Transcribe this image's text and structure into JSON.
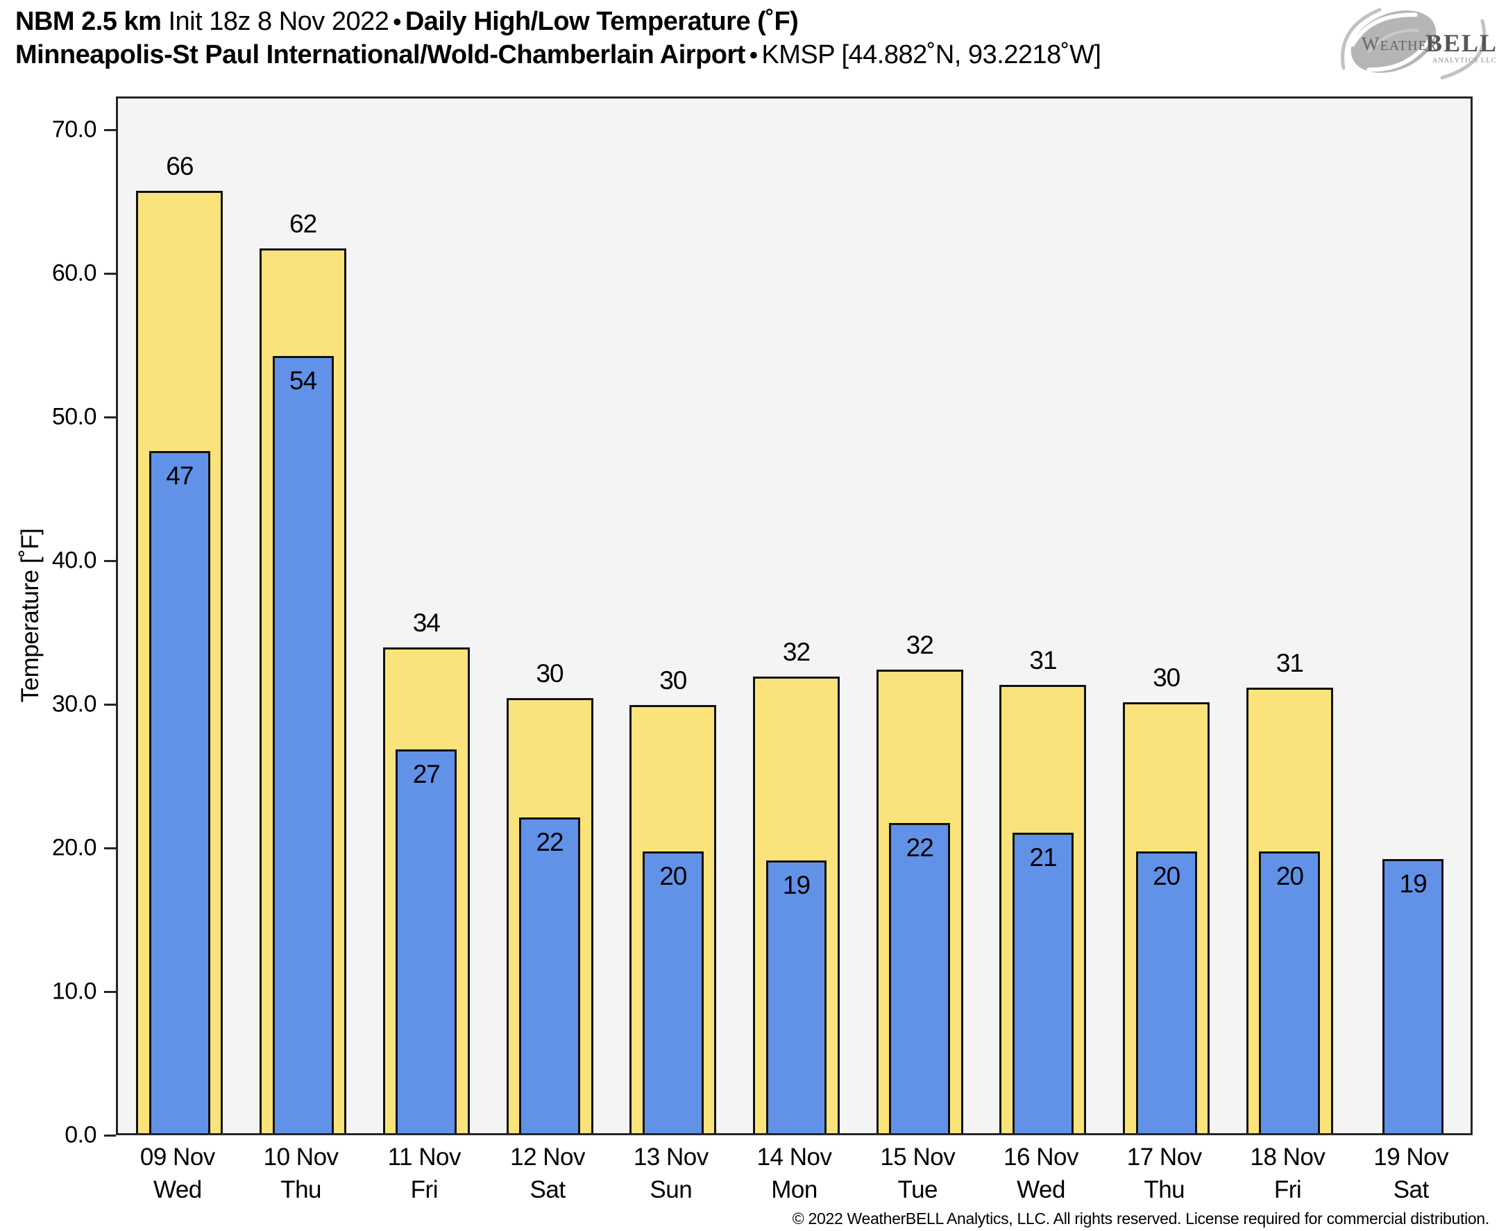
{
  "header": {
    "model": "NBM 2.5 km",
    "init": "Init 18z 8 Nov 2022",
    "separator": "•",
    "product": "Daily High/Low Temperature (˚F)",
    "station": "Minneapolis-St Paul International/Wold-Chamberlain Airport",
    "station_id": "KMSP [44.882˚N, 93.2218˚W]"
  },
  "logo": {
    "icon": "weatherbell-swirl-icon",
    "text_weather": "Weather",
    "text_bell": "BELL",
    "text_sub": "Analytics LLC"
  },
  "footer": {
    "copyright": "© 2022 WeatherBELL Analytics, LLC. All rights reserved. License required for commercial distribution."
  },
  "chart_data": {
    "type": "bar",
    "title": "Daily High/Low Temperature (˚F)",
    "station": "KMSP Minneapolis-St Paul International/Wold-Chamberlain Airport",
    "ylabel": "Temperature [˚F]",
    "ylim": [
      0,
      72.33
    ],
    "yticks": [
      0,
      10,
      20,
      30,
      40,
      50,
      60,
      70
    ],
    "ytick_labels": [
      "0.0",
      "10.0",
      "20.0",
      "30.0",
      "40.0",
      "50.0",
      "60.0",
      "70.0"
    ],
    "grid": false,
    "legend_position": "none",
    "plot_background": "#f4f4f4",
    "bar_edge_color": "#111111",
    "categories": [
      {
        "date": "09 Nov",
        "day": "Wed"
      },
      {
        "date": "10 Nov",
        "day": "Thu"
      },
      {
        "date": "11 Nov",
        "day": "Fri"
      },
      {
        "date": "12 Nov",
        "day": "Sat"
      },
      {
        "date": "13 Nov",
        "day": "Sun"
      },
      {
        "date": "14 Nov",
        "day": "Mon"
      },
      {
        "date": "15 Nov",
        "day": "Tue"
      },
      {
        "date": "16 Nov",
        "day": "Wed"
      },
      {
        "date": "17 Nov",
        "day": "Thu"
      },
      {
        "date": "18 Nov",
        "day": "Fri"
      },
      {
        "date": "19 Nov",
        "day": "Sat"
      }
    ],
    "series": [
      {
        "name": "Daily High",
        "color": "#FBE37B",
        "labels": [
          66,
          62,
          34,
          30,
          30,
          32,
          32,
          31,
          30,
          31,
          null
        ],
        "bar_tops_f": [
          65.6,
          61.6,
          33.8,
          30.3,
          29.8,
          31.8,
          32.3,
          31.2,
          30.0,
          31.0,
          null
        ],
        "bar_width_frac": 0.703,
        "label_position": "above-bar"
      },
      {
        "name": "Daily Low",
        "color": "#6292E8",
        "labels": [
          47,
          54,
          27,
          22,
          20,
          19,
          22,
          21,
          20,
          20,
          19
        ],
        "bar_tops_f": [
          47.5,
          54.1,
          26.7,
          22.0,
          19.6,
          19.0,
          21.6,
          20.9,
          19.6,
          19.6,
          19.1
        ],
        "bar_width_frac": 0.495,
        "label_position": "inside-bar-top"
      }
    ]
  }
}
